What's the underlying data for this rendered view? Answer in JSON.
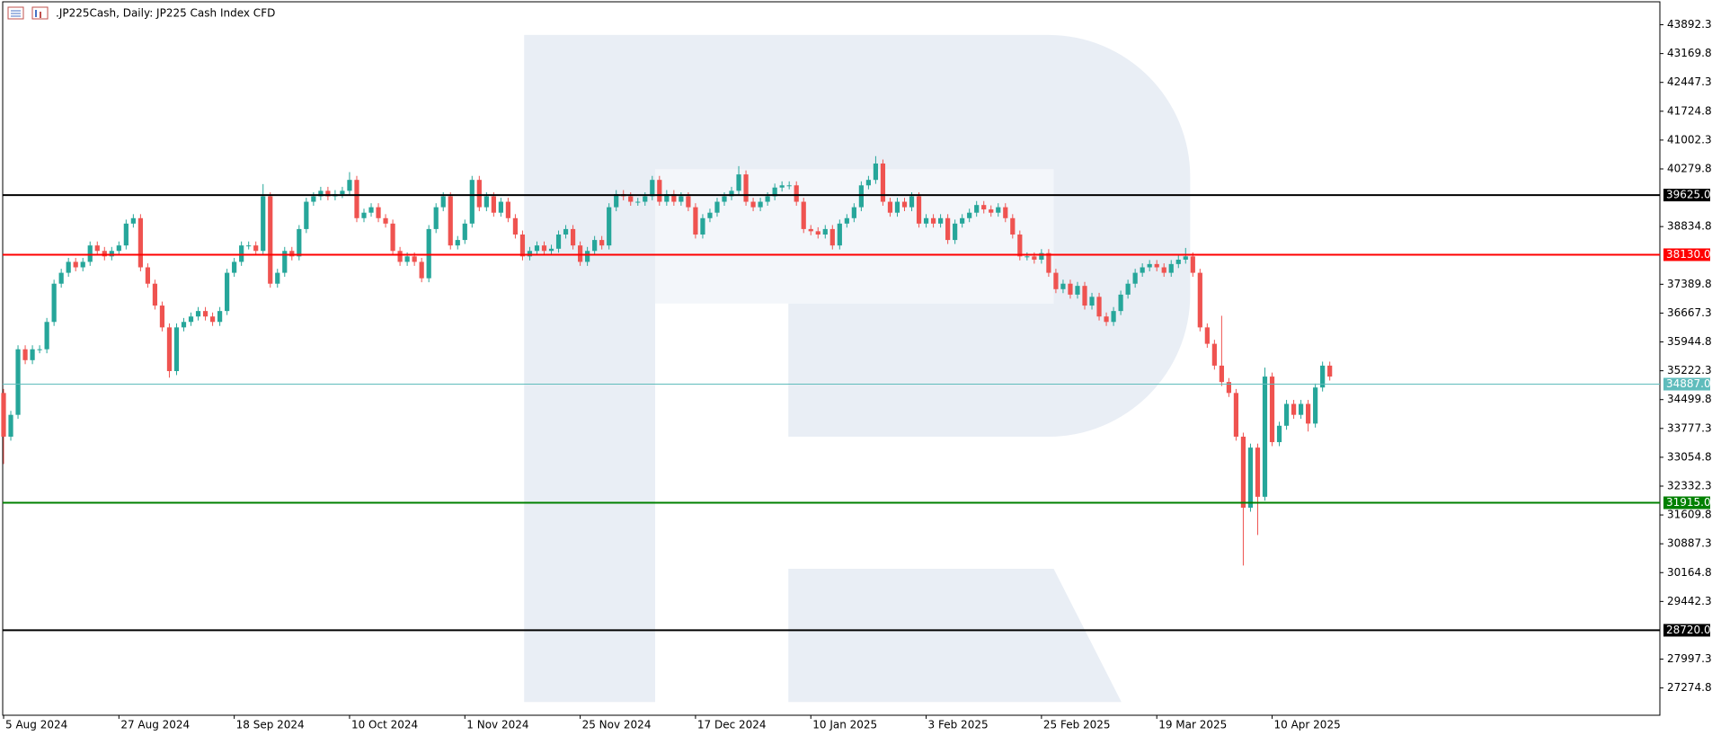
{
  "chart_data": {
    "type": "candlestick",
    "title": ".JP225Cash, Daily:  JP225 Cash Index CFD",
    "categories": [
      "5 Aug 2024",
      null,
      null,
      null,
      null,
      null,
      null,
      null,
      null,
      null,
      null,
      null,
      null,
      null,
      null,
      null,
      "27 Aug 2024",
      null,
      null,
      null,
      null,
      null,
      null,
      null,
      null,
      null,
      null,
      null,
      null,
      null,
      null,
      null,
      "18 Sep 2024",
      null,
      null,
      null,
      null,
      null,
      null,
      null,
      null,
      null,
      null,
      null,
      null,
      null,
      null,
      null,
      "10 Oct 2024",
      null,
      null,
      null,
      null,
      null,
      null,
      null,
      null,
      null,
      null,
      null,
      null,
      null,
      null,
      null,
      "1 Nov 2024",
      null,
      null,
      null,
      null,
      null,
      null,
      null,
      null,
      null,
      null,
      null,
      null,
      null,
      null,
      null,
      "25 Nov 2024",
      null,
      null,
      null,
      null,
      null,
      null,
      null,
      null,
      null,
      null,
      null,
      null,
      null,
      null,
      null,
      "17 Dec 2024",
      null,
      null,
      null,
      null,
      null,
      null,
      null,
      null,
      null,
      null,
      null,
      null,
      null,
      null,
      null,
      "10 Jan 2025",
      null,
      null,
      null,
      null,
      null,
      null,
      null,
      null,
      null,
      null,
      null,
      null,
      null,
      null,
      null,
      "3 Feb 2025",
      null,
      null,
      null,
      null,
      null,
      null,
      null,
      null,
      null,
      null,
      null,
      null,
      null,
      null,
      null,
      "25 Feb 2025",
      null,
      null,
      null,
      null,
      null,
      null,
      null,
      null,
      null,
      null,
      null,
      null,
      null,
      null,
      null,
      "19 Mar 2025",
      null,
      null,
      null,
      null,
      null,
      null,
      null,
      null,
      null,
      null,
      null,
      null,
      null,
      null,
      null,
      "10 Apr 2025",
      null,
      null,
      null,
      null,
      null,
      null,
      null,
      null
    ],
    "open": [
      34666,
      33571,
      34118,
      35761,
      35488,
      35761,
      35761,
      36446,
      37404,
      37677,
      37951,
      37814,
      37951,
      38362,
      38225,
      38088,
      38225,
      38362,
      38910,
      39046,
      37814,
      37404,
      36856,
      36309,
      35214,
      36309,
      36446,
      36582,
      36719,
      36582,
      36446,
      36719,
      37677,
      37951,
      38362,
      38362,
      38225,
      39594,
      37404,
      37677,
      38225,
      38088,
      38773,
      39457,
      39594,
      39731,
      39594,
      39649,
      39731,
      40005,
      39046,
      39183,
      39320,
      39046,
      38910,
      38225,
      37951,
      38088,
      37951,
      37540,
      38773,
      39320,
      39594,
      38362,
      38499,
      38910,
      40005,
      39320,
      39594,
      39183,
      39457,
      39046,
      38636,
      38088,
      38225,
      38362,
      38225,
      38280,
      38636,
      38773,
      38362,
      37951,
      38225,
      38499,
      38362,
      39320,
      39649,
      39594,
      39457,
      39457,
      39594,
      40005,
      39457,
      39649,
      39457,
      39594,
      39320,
      38636,
      39046,
      39183,
      39457,
      39594,
      39731,
      40142,
      39457,
      39320,
      39457,
      39594,
      39813,
      39868,
      39868,
      39457,
      38773,
      38718,
      38636,
      38773,
      38362,
      38910,
      39046,
      39320,
      39868,
      40005,
      40415,
      39457,
      39183,
      39457,
      39320,
      39594,
      38910,
      39046,
      38910,
      39046,
      38499,
      38910,
      39046,
      39183,
      39375,
      39265,
      39183,
      39320,
      39046,
      38636,
      38088,
      38088,
      38006,
      38170,
      37677,
      37267,
      37404,
      37130,
      37349,
      36856,
      37075,
      36582,
      36446,
      36719,
      37130,
      37404,
      37677,
      37814,
      37896,
      37814,
      37677,
      37896,
      38006,
      38088,
      37677,
      36309,
      35898,
      35351,
      34940,
      34666,
      33571,
      31791,
      33297,
      32065,
      35077,
      33434,
      33845,
      34392,
      34118,
      34392,
      33899,
      34803,
      35351
    ],
    "high": [
      34766,
      34218,
      35861,
      35861,
      35861,
      35861,
      36546,
      37504,
      37777,
      38051,
      38051,
      38051,
      38462,
      38462,
      38325,
      38325,
      38462,
      39010,
      39146,
      39146,
      37914,
      37504,
      36956,
      36409,
      36409,
      36546,
      36682,
      36819,
      36819,
      36682,
      36819,
      37777,
      38051,
      38462,
      38462,
      38462,
      39900,
      39694,
      37777,
      38325,
      38325,
      38873,
      39557,
      39694,
      39831,
      39831,
      39749,
      39831,
      40200,
      40105,
      39283,
      39420,
      39420,
      39146,
      39010,
      38325,
      38188,
      38188,
      38051,
      38873,
      39420,
      39694,
      39694,
      38599,
      39010,
      40105,
      40105,
      39694,
      39694,
      39557,
      39557,
      39146,
      38736,
      38325,
      38462,
      38462,
      38380,
      38736,
      38873,
      38873,
      38462,
      38325,
      38599,
      38599,
      39420,
      39749,
      39749,
      39694,
      39557,
      39694,
      40105,
      40105,
      39749,
      39749,
      39694,
      39694,
      39420,
      39146,
      39283,
      39557,
      39694,
      39831,
      40350,
      40242,
      39557,
      39557,
      39694,
      39913,
      39968,
      39968,
      39968,
      39557,
      38873,
      38818,
      38873,
      38873,
      39010,
      39146,
      39420,
      39968,
      40105,
      40600,
      40515,
      39557,
      39557,
      39557,
      39694,
      39694,
      39146,
      39146,
      39146,
      39146,
      39010,
      39146,
      39283,
      39475,
      39475,
      39365,
      39420,
      39420,
      39146,
      38736,
      38188,
      38188,
      38270,
      38270,
      37777,
      37504,
      37504,
      37449,
      37449,
      37175,
      37175,
      36682,
      36819,
      37230,
      37504,
      37777,
      37914,
      37996,
      37996,
      37914,
      37996,
      38106,
      38300,
      38188,
      37777,
      36409,
      35998,
      36600,
      35040,
      34766,
      33671,
      33397,
      33397,
      35300,
      35177,
      33945,
      34492,
      34492,
      34492,
      34492,
      34903,
      35451,
      35451
    ],
    "low": [
      32887,
      33471,
      34018,
      35388,
      35388,
      35661,
      35661,
      36346,
      37304,
      37577,
      37714,
      37714,
      37851,
      38125,
      37988,
      37988,
      38125,
      38262,
      38810,
      37714,
      37304,
      36756,
      36209,
      35050,
      35114,
      36209,
      36346,
      36482,
      36482,
      36346,
      36346,
      36619,
      37577,
      37851,
      38262,
      38125,
      38125,
      37304,
      37304,
      37577,
      37988,
      37988,
      38673,
      39357,
      39494,
      39494,
      39494,
      39549,
      39631,
      38946,
      38946,
      39083,
      38946,
      38810,
      38125,
      37851,
      37851,
      37851,
      37440,
      37440,
      38673,
      39220,
      38262,
      38262,
      38399,
      38810,
      39220,
      39220,
      39083,
      39083,
      38946,
      38536,
      37988,
      37988,
      38125,
      38125,
      38125,
      38180,
      38536,
      38262,
      37851,
      37851,
      38125,
      38262,
      38262,
      39220,
      39494,
      39357,
      39357,
      39357,
      39494,
      39357,
      39357,
      39357,
      39357,
      39220,
      38536,
      38536,
      38946,
      39083,
      39357,
      39494,
      39631,
      39357,
      39220,
      39220,
      39357,
      39494,
      39713,
      39768,
      39357,
      38673,
      38618,
      38536,
      38536,
      38262,
      38262,
      38810,
      38946,
      39220,
      39768,
      39905,
      39357,
      39083,
      39083,
      39220,
      39220,
      38810,
      38810,
      38810,
      38810,
      38399,
      38399,
      38810,
      38946,
      39083,
      39165,
      39083,
      39083,
      38946,
      38536,
      37988,
      37988,
      37906,
      37906,
      37577,
      37167,
      37167,
      37030,
      37030,
      36756,
      36756,
      36482,
      36346,
      36346,
      36619,
      37030,
      37304,
      37577,
      37714,
      37714,
      37577,
      37577,
      37796,
      37906,
      37577,
      36209,
      35798,
      35251,
      34840,
      34566,
      33471,
      30341,
      31691,
      31107,
      31965,
      33334,
      33334,
      33745,
      34018,
      34018,
      33700,
      33799,
      34703,
      34977
    ],
    "close": [
      33571,
      34118,
      35761,
      35488,
      35761,
      35761,
      36446,
      37404,
      37677,
      37951,
      37814,
      37951,
      38362,
      38225,
      38088,
      38225,
      38362,
      38910,
      39046,
      37814,
      37404,
      36856,
      36309,
      35214,
      36309,
      36446,
      36582,
      36719,
      36582,
      36446,
      36719,
      37677,
      37951,
      38362,
      38362,
      38225,
      39594,
      37404,
      37677,
      38225,
      38088,
      38773,
      39457,
      39594,
      39731,
      39594,
      39649,
      39731,
      40005,
      39046,
      39183,
      39320,
      39046,
      38910,
      38225,
      37951,
      38088,
      37951,
      37540,
      38773,
      39320,
      39594,
      38362,
      38499,
      38910,
      40005,
      39320,
      39594,
      39183,
      39457,
      39046,
      38636,
      38088,
      38225,
      38362,
      38225,
      38280,
      38636,
      38773,
      38362,
      37951,
      38225,
      38499,
      38362,
      39320,
      39649,
      39594,
      39457,
      39457,
      39594,
      40005,
      39457,
      39649,
      39457,
      39594,
      39320,
      38636,
      39046,
      39183,
      39457,
      39594,
      39731,
      40142,
      39457,
      39320,
      39457,
      39594,
      39813,
      39868,
      39868,
      39457,
      38773,
      38718,
      38636,
      38773,
      38362,
      38910,
      39046,
      39320,
      39868,
      40005,
      40415,
      39457,
      39183,
      39457,
      39320,
      39594,
      38910,
      39046,
      38910,
      39046,
      38499,
      38910,
      39046,
      39183,
      39375,
      39265,
      39183,
      39320,
      39046,
      38636,
      38088,
      38088,
      38006,
      38170,
      37677,
      37267,
      37404,
      37130,
      37349,
      36856,
      37075,
      36582,
      36446,
      36719,
      37130,
      37404,
      37677,
      37814,
      37896,
      37814,
      37677,
      37896,
      38006,
      38088,
      37677,
      36309,
      35898,
      35351,
      34940,
      34666,
      33571,
      31791,
      33297,
      32065,
      35077,
      33434,
      33845,
      34392,
      34118,
      34392,
      33899,
      34803,
      35351,
      35077
    ],
    "up_color": "#26a69a",
    "down_color": "#ef5350",
    "ylim": [
      26591,
      44467
    ],
    "yticks": [
      43892.3,
      43169.8,
      42447.3,
      41724.8,
      41002.3,
      40279.8,
      38834.8,
      37389.8,
      36667.3,
      35944.8,
      35222.3,
      34499.8,
      33777.3,
      33054.8,
      32332.3,
      31609.8,
      30887.3,
      30164.8,
      29442.3,
      27997.3,
      27274.8
    ],
    "levels": [
      {
        "value": {
          "value": 39625,
          "label": "39625.0"
        },
        "color": "#000000",
        "width": 2
      },
      {
        "value": {
          "value": 38130,
          "label": "38130.0"
        },
        "color": "#ff0000",
        "width": 2
      },
      {
        "value": {
          "value": 34887,
          "label": "34887.0"
        },
        "color": "#5fbcbc",
        "width": 1
      },
      {
        "value": {
          "value": 31915,
          "label": "31915.0"
        },
        "color": "#008000",
        "width": 2
      },
      {
        "value": {
          "value": 28720,
          "label": "28720.0"
        },
        "color": "#000000",
        "width": 2
      }
    ],
    "grid": false
  }
}
